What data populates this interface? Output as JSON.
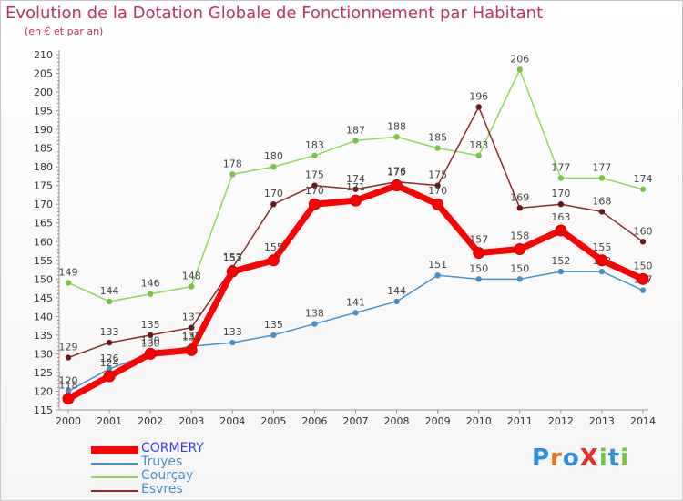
{
  "header": {
    "title": "Evolution de la Dotation Globale de Fonctionnement par Habitant",
    "subtitle": "(en € et par an)"
  },
  "logo": {
    "text": "ProXiti",
    "letters": [
      {
        "ch": "P",
        "color": "#2f8fd8"
      },
      {
        "ch": "r",
        "color": "#e8731a"
      },
      {
        "ch": "o",
        "color": "#2f8fd8"
      },
      {
        "ch": "X",
        "color": "#e0302a"
      },
      {
        "ch": "i",
        "color": "#7cc242"
      },
      {
        "ch": "t",
        "color": "#2f8fd8"
      },
      {
        "ch": "i",
        "color": "#7cc242"
      }
    ]
  },
  "chart_data": {
    "type": "line",
    "categories": [
      "2000",
      "2001",
      "2002",
      "2003",
      "2004",
      "2005",
      "2006",
      "2007",
      "2008",
      "2009",
      "2010",
      "2011",
      "2012",
      "2013",
      "2014"
    ],
    "ylim": [
      115,
      210
    ],
    "ytick_step": 5,
    "grid": false,
    "legend_position": "bottom-left",
    "series": [
      {
        "name": "Truyes",
        "color": "#4a90c8",
        "marker": "#4a90c8",
        "values": [
          120,
          126,
          130,
          132,
          133,
          135,
          138,
          141,
          144,
          151,
          150,
          150,
          152,
          152,
          147
        ],
        "labels": [
          "120",
          "126",
          "130",
          "132",
          "133",
          "135",
          "138",
          "141",
          "144",
          "151",
          "150",
          "150",
          "152",
          "152",
          "147"
        ]
      },
      {
        "name": "Courçay",
        "color": "#8ed85a",
        "marker": "#7cc242",
        "values": [
          149,
          144,
          146,
          148,
          178,
          180,
          183,
          187,
          188,
          185,
          183,
          206,
          177,
          177,
          174
        ],
        "labels": [
          "149",
          "144",
          "146",
          "148",
          "178",
          "180",
          "183",
          "187",
          "188",
          "185",
          "183",
          "206",
          "177",
          "177",
          "174"
        ]
      },
      {
        "name": "Esvres",
        "color": "#8b2a2a",
        "marker": "#6a1a1a",
        "values": [
          129,
          133,
          135,
          137,
          153,
          170,
          175,
          174,
          176,
          175,
          196,
          169,
          170,
          168,
          160
        ],
        "labels": [
          "129",
          "133",
          "135",
          "137",
          "153",
          "170",
          "175",
          "174",
          "176",
          "175",
          "196",
          "169",
          "170",
          "168",
          "160"
        ]
      },
      {
        "name": "CORMERY",
        "color": "#ff0000",
        "marker": "#ff0000",
        "values": [
          118,
          124,
          130,
          131,
          152,
          155,
          170,
          171,
          175,
          170,
          157,
          158,
          163,
          155,
          150
        ],
        "labels": [
          "118",
          "124",
          "130",
          "131",
          "152",
          "155",
          "170",
          "171",
          "175",
          "170",
          "157",
          "158",
          "163",
          "155",
          "150"
        ]
      }
    ],
    "legend": [
      {
        "name": "CORMERY",
        "color": "#ff0000",
        "text_color": "#3a3aff"
      },
      {
        "name": "Truyes",
        "color": "#4a90c8",
        "text_color": "#4a90c8"
      },
      {
        "name": "Courçay",
        "color": "#8ed85a",
        "text_color": "#4a90c8"
      },
      {
        "name": "Esvres",
        "color": "#8b2a2a",
        "text_color": "#4a90c8"
      }
    ]
  }
}
